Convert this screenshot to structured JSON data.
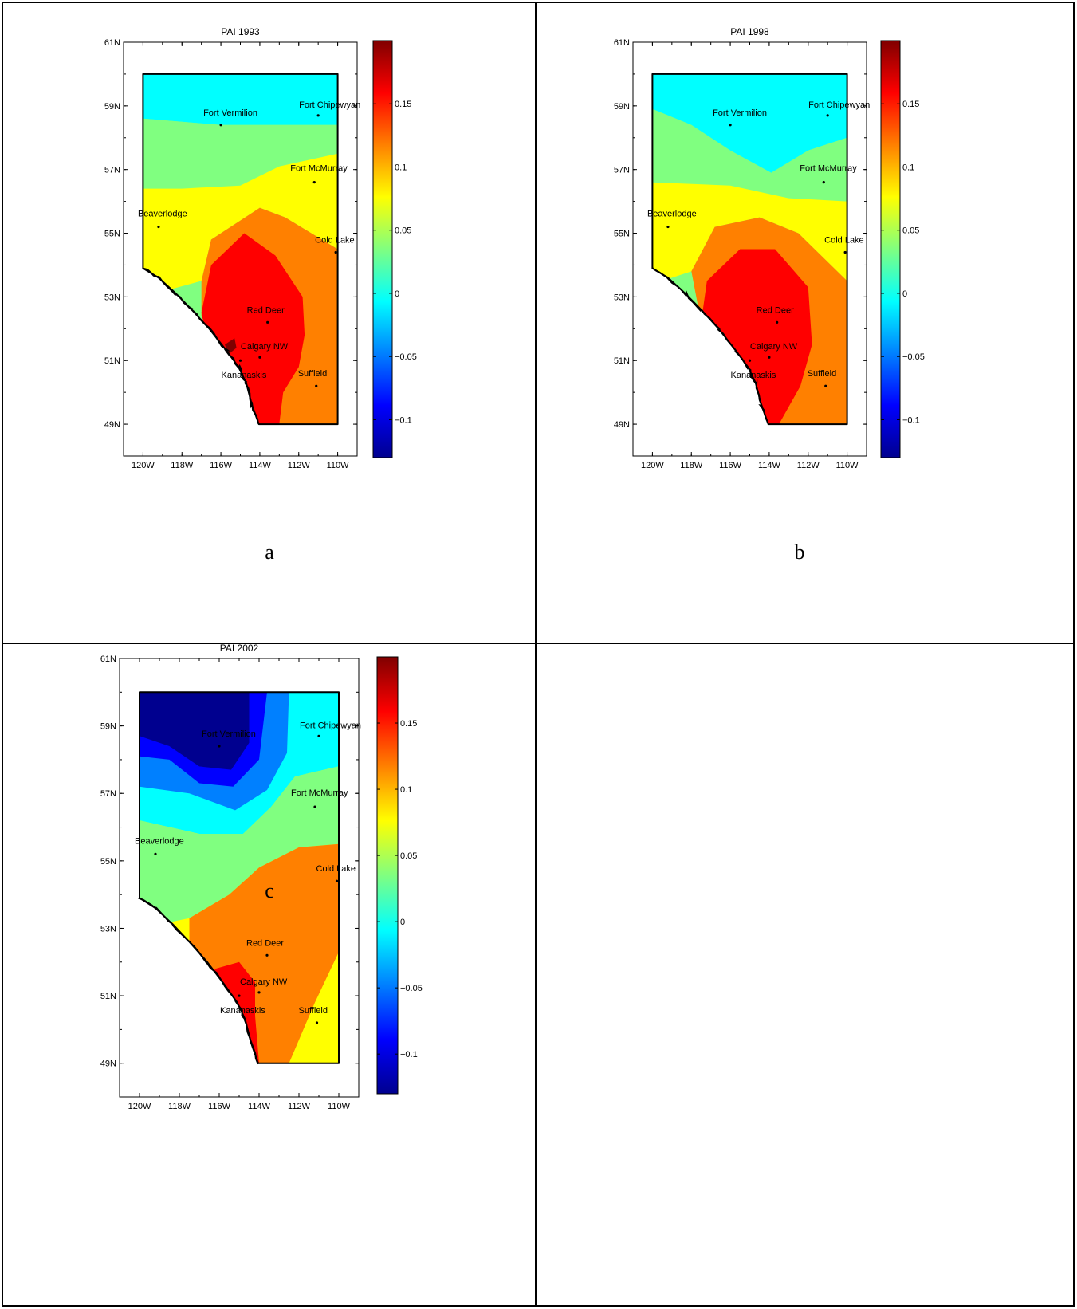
{
  "colors": {
    "colormap": [
      "#00008f",
      "#0000ff",
      "#0080ff",
      "#00ffff",
      "#80ff80",
      "#ffff00",
      "#ff8000",
      "#ff0000",
      "#800000"
    ],
    "boundary": "#000000"
  },
  "colorbar": {
    "type": "jet",
    "range": [
      -0.13,
      0.2
    ],
    "tick_labels": [
      "0.15",
      "0.1",
      "0.05",
      "0",
      "−0.05",
      "−0.1"
    ],
    "tick_values": [
      0.15,
      0.1,
      0.05,
      0,
      -0.05,
      -0.1
    ]
  },
  "axes": {
    "lat_labels": [
      "61N",
      "59N",
      "57N",
      "55N",
      "53N",
      "51N",
      "49N"
    ],
    "lat_values": [
      61,
      59,
      57,
      55,
      53,
      51,
      49
    ],
    "lon_labels": [
      "120W",
      "118W",
      "116W",
      "114W",
      "112W",
      "110W"
    ],
    "lon_values": [
      -120,
      -118,
      -116,
      -114,
      -112,
      -110
    ],
    "lat_range": [
      48,
      61
    ],
    "lon_range": [
      -121,
      -109
    ]
  },
  "stations": [
    {
      "name": "Fort Vermilion",
      "lon": -116.0,
      "lat": 58.4
    },
    {
      "name": "Fort Chipewyan",
      "lon": -111.0,
      "lat": 58.7
    },
    {
      "name": "Fort McMurray",
      "lon": -111.2,
      "lat": 56.6
    },
    {
      "name": "Beaverlodge",
      "lon": -119.2,
      "lat": 55.2
    },
    {
      "name": "Cold Lake",
      "lon": -110.1,
      "lat": 54.4
    },
    {
      "name": "Red Deer",
      "lon": -113.6,
      "lat": 52.2
    },
    {
      "name": "Calgary NW",
      "lon": -114.0,
      "lat": 51.1
    },
    {
      "name": "Kananaskis",
      "lon": -115.0,
      "lat": 51.0
    },
    {
      "name": "Suffield",
      "lon": -111.1,
      "lat": 50.2
    }
  ],
  "panels": [
    {
      "id": "a",
      "title": "PAI 1993",
      "letter": "a"
    },
    {
      "id": "b",
      "title": "PAI 1998",
      "letter": "b"
    },
    {
      "id": "c",
      "title": "PAI 2002",
      "letter": "c"
    }
  ]
}
